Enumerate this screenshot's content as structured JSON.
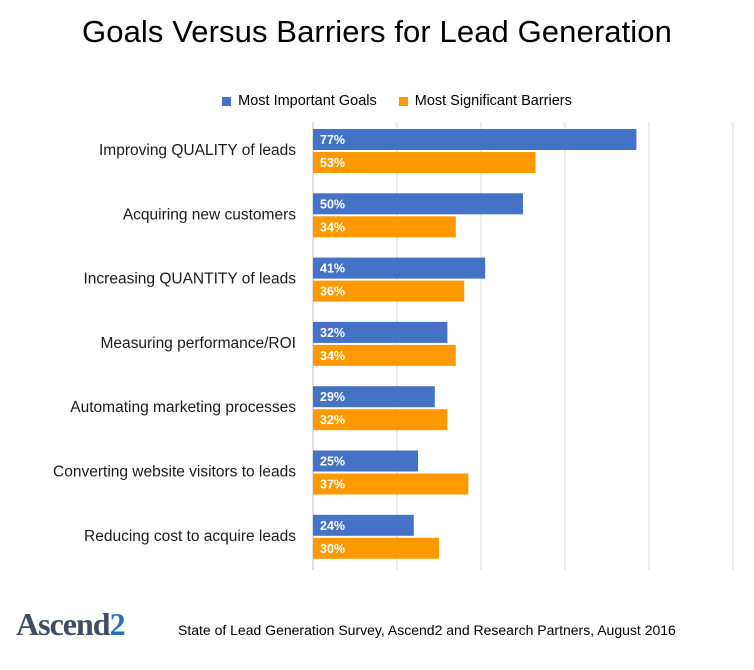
{
  "chart_data": {
    "type": "bar",
    "orientation": "horizontal",
    "title": "Goals Versus Barriers for Lead Generation",
    "categories": [
      "Improving QUALITY of leads",
      "Acquiring new customers",
      "Increasing QUANTITY of leads",
      "Measuring performance/ROI",
      "Automating marketing processes",
      "Converting website visitors to leads",
      "Reducing cost to acquire leads"
    ],
    "series": [
      {
        "name": "Most Important Goals",
        "color": "#4472c4",
        "values": [
          77,
          50,
          41,
          32,
          29,
          25,
          24
        ],
        "labels": [
          "77%",
          "50%",
          "41%",
          "32%",
          "29%",
          "25%",
          "24%"
        ]
      },
      {
        "name": "Most Significant Barriers",
        "color": "#ff9900",
        "values": [
          53,
          34,
          36,
          34,
          32,
          37,
          30
        ],
        "labels": [
          "53%",
          "34%",
          "36%",
          "34%",
          "32%",
          "37%",
          "30%"
        ]
      }
    ],
    "xlim": [
      0,
      100
    ],
    "value_unit": "%",
    "grid": true,
    "legend": "top"
  },
  "footer": {
    "logo_text": "Ascend",
    "logo_number": "2",
    "source": "State of Lead Generation Survey, Ascend2 and Research Partners, August 2016"
  }
}
